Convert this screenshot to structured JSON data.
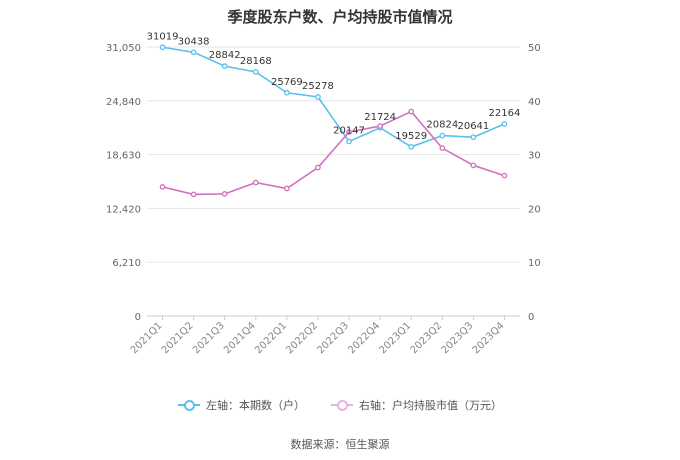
{
  "chart_data": {
    "type": "line",
    "title": "季度股东户数、户均持股市值情况",
    "categories": [
      "2021Q1",
      "2021Q2",
      "2021Q3",
      "2021Q4",
      "2022Q1",
      "2022Q2",
      "2022Q3",
      "2022Q4",
      "2023Q1",
      "2023Q2",
      "2023Q3",
      "2023Q4"
    ],
    "y_left": {
      "ticks": [
        "0",
        "6,210",
        "12,420",
        "18,630",
        "24,840",
        "31,050"
      ],
      "ylim": [
        0,
        31050
      ]
    },
    "y_right": {
      "ticks": [
        "0",
        "10",
        "20",
        "30",
        "40",
        "50"
      ],
      "ylim": [
        0,
        50
      ]
    },
    "series": [
      {
        "name": "左轴：本期数（户）",
        "axis": "left",
        "color": "#5bc0eb",
        "values": [
          31019,
          30438,
          28842,
          28168,
          25769,
          25278,
          20147,
          21724,
          19529,
          20824,
          20641,
          22164
        ],
        "labels": [
          "31019",
          "30438",
          "28842",
          "28168",
          "25769",
          "25278",
          "20147",
          "21724",
          "19529",
          "20824",
          "20641",
          "22164"
        ]
      },
      {
        "name": "右轴：户均持股市值（万元）",
        "axis": "right",
        "color": "#d36fbf",
        "values": [
          24.0,
          22.6,
          22.7,
          24.8,
          23.7,
          27.6,
          34.2,
          35.3,
          38.0,
          31.2,
          28.0,
          26.1
        ]
      }
    ],
    "grid": true,
    "legend_position": "bottom"
  },
  "source": "数据来源：恒生聚源"
}
